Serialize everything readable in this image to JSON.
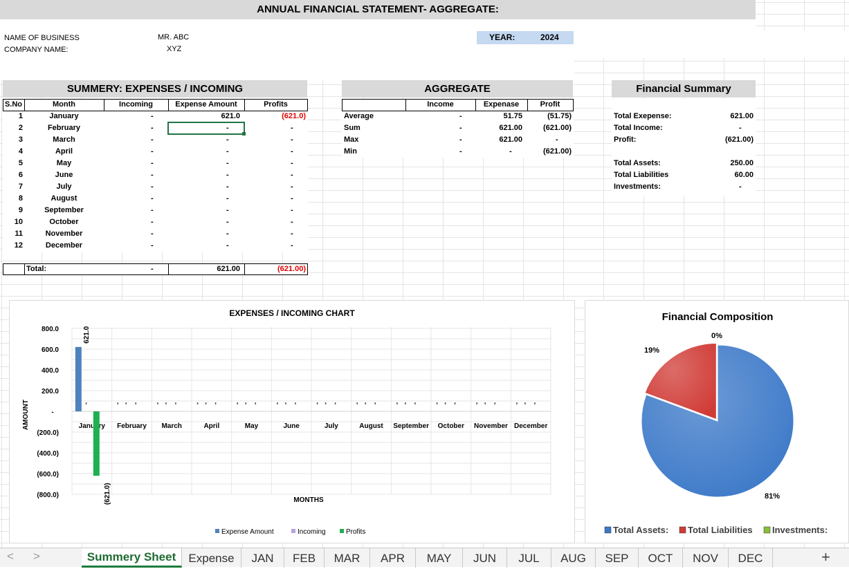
{
  "title": "ANNUAL FINANCIAL STATEMENT- AGGREGATE:",
  "business": {
    "name_label": "NAME OF BUSINESS",
    "name_value": "MR. ABC",
    "company_label": "COMPANY NAME:",
    "company_value": "XYZ",
    "year_label": "YEAR:",
    "year_value": "2024"
  },
  "summary": {
    "header": "SUMMERY: EXPENSES / INCOMING",
    "columns": [
      "S.No",
      "Month",
      "Incoming",
      "Expense Amount",
      "Profits"
    ],
    "rows": [
      {
        "no": "1",
        "month": "January",
        "incoming": "-",
        "expense": "621.0",
        "profit": "(621.0)"
      },
      {
        "no": "2",
        "month": "February",
        "incoming": "-",
        "expense": "-",
        "profit": "-"
      },
      {
        "no": "3",
        "month": "March",
        "incoming": "-",
        "expense": "-",
        "profit": "-"
      },
      {
        "no": "4",
        "month": "April",
        "incoming": "-",
        "expense": "-",
        "profit": "-"
      },
      {
        "no": "5",
        "month": "May",
        "incoming": "-",
        "expense": "-",
        "profit": "-"
      },
      {
        "no": "6",
        "month": "June",
        "incoming": "-",
        "expense": "-",
        "profit": "-"
      },
      {
        "no": "7",
        "month": "July",
        "incoming": "-",
        "expense": "-",
        "profit": "-"
      },
      {
        "no": "8",
        "month": "August",
        "incoming": "-",
        "expense": "-",
        "profit": "-"
      },
      {
        "no": "9",
        "month": "September",
        "incoming": "-",
        "expense": "-",
        "profit": "-"
      },
      {
        "no": "10",
        "month": "October",
        "incoming": "-",
        "expense": "-",
        "profit": "-"
      },
      {
        "no": "11",
        "month": "November",
        "incoming": "-",
        "expense": "-",
        "profit": "-"
      },
      {
        "no": "12",
        "month": "December",
        "incoming": "-",
        "expense": "-",
        "profit": "-"
      }
    ],
    "total_label": "Total:",
    "total_incoming": "-",
    "total_expense": "621.00",
    "total_profit": "(621.00)"
  },
  "aggregate": {
    "header": "AGGREGATE",
    "columns": [
      "Income",
      "Expenase",
      "Profit"
    ],
    "rows": [
      {
        "label": "Average",
        "income": "-",
        "expense": "51.75",
        "profit": "(51.75)"
      },
      {
        "label": "Sum",
        "income": "-",
        "expense": "621.00",
        "profit": "(621.00)"
      },
      {
        "label": "Max",
        "income": "-",
        "expense": "621.00",
        "profit": "-"
      },
      {
        "label": "Min",
        "income": "-",
        "expense": "-",
        "profit": "(621.00)"
      }
    ]
  },
  "financial_summary": {
    "header": "Financial Summary",
    "rows": [
      {
        "label": "Total Exepense:",
        "value": "621.00"
      },
      {
        "label": "Total Income:",
        "value": "-"
      },
      {
        "label": "Profit:",
        "value": "(621.00)"
      }
    ],
    "rows2": [
      {
        "label": "Total Assets:",
        "value": "250.00"
      },
      {
        "label": "Total Liabilities",
        "value": "60.00"
      },
      {
        "label": "Investments:",
        "value": "-"
      }
    ]
  },
  "chart_data": [
    {
      "type": "bar",
      "title": "EXPENSES / INCOMING CHART",
      "xlabel": "MONTHS",
      "ylabel": "AMOUNT",
      "ylim": [
        -800,
        800
      ],
      "yticks": [
        "800.0",
        "600.0",
        "400.0",
        "200.0",
        "-",
        "(200.0)",
        "(400.0)",
        "(600.0)",
        "(800.0)"
      ],
      "categories": [
        "January",
        "February",
        "March",
        "April",
        "May",
        "June",
        "July",
        "August",
        "September",
        "October",
        "November",
        "December"
      ],
      "series": [
        {
          "name": "Expense Amount",
          "color": "#4f81bd",
          "values": [
            621,
            0,
            0,
            0,
            0,
            0,
            0,
            0,
            0,
            0,
            0,
            0
          ]
        },
        {
          "name": "Incoming",
          "color": "#b8a2e0",
          "values": [
            0,
            0,
            0,
            0,
            0,
            0,
            0,
            0,
            0,
            0,
            0,
            0
          ]
        },
        {
          "name": "Profits",
          "color": "#1fb050",
          "values": [
            -621,
            0,
            0,
            0,
            0,
            0,
            0,
            0,
            0,
            0,
            0,
            0
          ]
        }
      ],
      "data_labels": [
        "621.0",
        "(621.0)"
      ],
      "grid": true,
      "legend": "bottom"
    },
    {
      "type": "pie",
      "title": "Financial Composition",
      "categories": [
        "Total Assets:",
        "Total Liabilities",
        "Investments:"
      ],
      "values": [
        250,
        60,
        0
      ],
      "percent_labels": [
        "81%",
        "19%",
        "0%"
      ],
      "colors": [
        "#3b78c8",
        "#d03b36",
        "#8bbd3c"
      ],
      "legend": "bottom"
    }
  ],
  "sheet_tabs": {
    "nav_prev": "<",
    "nav_next": ">",
    "tabs": [
      "Summery Sheet",
      "Expense",
      "JAN",
      "FEB",
      "MAR",
      "APR",
      "MAY",
      "JUN",
      "JUL",
      "AUG",
      "SEP",
      "OCT",
      "NOV",
      "DEC"
    ],
    "active": "Summery Sheet",
    "add": "+"
  }
}
